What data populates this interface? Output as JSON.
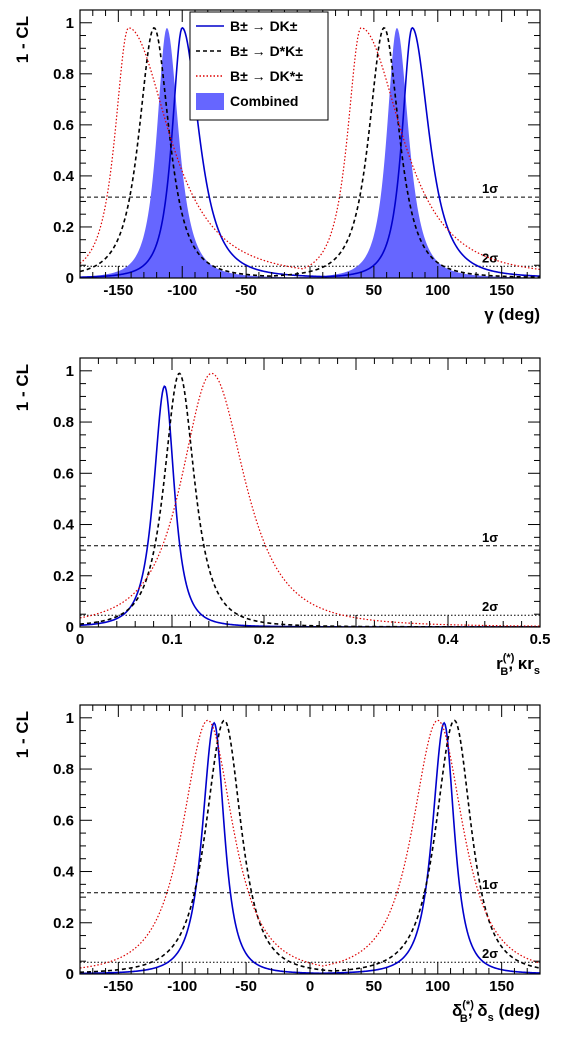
{
  "chart_data": [
    {
      "type": "line",
      "xlabel": "γ (deg)",
      "ylabel": "1 - CL",
      "xlim": [
        -180,
        180
      ],
      "ylim": [
        0,
        1.05
      ],
      "xticks": [
        -150,
        -100,
        -50,
        0,
        50,
        100,
        150
      ],
      "yticks": [
        0,
        0.2,
        0.4,
        0.6,
        0.8,
        1
      ],
      "xtick_labels": [
        "-150",
        "-100",
        "-50",
        "0",
        "50",
        "100",
        "150"
      ],
      "ytick_labels": [
        "0",
        "0.2",
        "0.4",
        "0.6",
        "0.8",
        "1"
      ],
      "reference_lines": [
        {
          "label": "1σ",
          "y": 0.317
        },
        {
          "label": "2σ",
          "y": 0.046
        }
      ],
      "legend": {
        "placement": "top-center"
      },
      "series": [
        {
          "name": "B± → DK±",
          "style": "solid",
          "color": "#0000cc",
          "peaks": [
            {
              "x": -100,
              "y": 0.98,
              "wl": 12,
              "wr": 20
            },
            {
              "x": 80,
              "y": 0.98,
              "wl": 12,
              "wr": 20
            }
          ]
        },
        {
          "name": "B± → D*K±",
          "style": "dashed",
          "color": "#000000",
          "peaks": [
            {
              "x": -122,
              "y": 0.98,
              "wl": 18,
              "wr": 18
            },
            {
              "x": 58,
              "y": 0.98,
              "wl": 18,
              "wr": 18
            }
          ]
        },
        {
          "name": "B± → DK*±",
          "style": "dotted",
          "color": "#dd0000",
          "peaks": [
            {
              "x": -142,
              "y": 0.98,
              "wl": 16,
              "wr": 48
            },
            {
              "x": 40,
              "y": 0.98,
              "wl": 16,
              "wr": 48
            }
          ]
        },
        {
          "name": "Combined",
          "style": "filled",
          "color": "#6666ff",
          "peaks": [
            {
              "x": -112,
              "y": 0.98,
              "wl": 12,
              "wr": 14
            },
            {
              "x": 68,
              "y": 0.98,
              "wl": 12,
              "wr": 14
            }
          ]
        }
      ]
    },
    {
      "type": "line",
      "xlabel": "r_B^(*), κr_s",
      "ylabel": "1 - CL",
      "xlim": [
        0,
        0.5
      ],
      "ylim": [
        0,
        1.05
      ],
      "xticks": [
        0,
        0.1,
        0.2,
        0.3,
        0.4,
        0.5
      ],
      "yticks": [
        0,
        0.2,
        0.4,
        0.6,
        0.8,
        1
      ],
      "xtick_labels": [
        "0",
        "0.1",
        "0.2",
        "0.3",
        "0.4",
        "0.5"
      ],
      "ytick_labels": [
        "0",
        "0.2",
        "0.4",
        "0.6",
        "0.8",
        "1"
      ],
      "reference_lines": [
        {
          "label": "1σ",
          "y": 0.317
        },
        {
          "label": "2σ",
          "y": 0.046
        }
      ],
      "series": [
        {
          "style": "solid",
          "color": "#0000cc",
          "peaks": [
            {
              "x": 0.092,
              "y": 0.94,
              "wl": 0.018,
              "wr": 0.016
            }
          ]
        },
        {
          "style": "dashed",
          "color": "#000000",
          "peaks": [
            {
              "x": 0.108,
              "y": 0.99,
              "wl": 0.025,
              "wr": 0.025
            }
          ]
        },
        {
          "style": "dotted",
          "color": "#dd0000",
          "peaks": [
            {
              "x": 0.143,
              "y": 0.99,
              "wl": 0.05,
              "wr": 0.055
            }
          ]
        }
      ]
    },
    {
      "type": "line",
      "xlabel": "δ_B^(*), δ_s (deg)",
      "ylabel": "1 - CL",
      "xlim": [
        -180,
        180
      ],
      "ylim": [
        0,
        1.05
      ],
      "xticks": [
        -150,
        -100,
        -50,
        0,
        50,
        100,
        150
      ],
      "yticks": [
        0,
        0.2,
        0.4,
        0.6,
        0.8,
        1
      ],
      "xtick_labels": [
        "-150",
        "-100",
        "-50",
        "0",
        "50",
        "100",
        "150"
      ],
      "ytick_labels": [
        "0",
        "0.2",
        "0.4",
        "0.6",
        "0.8",
        "1"
      ],
      "reference_lines": [
        {
          "label": "1σ",
          "y": 0.317
        },
        {
          "label": "2σ",
          "y": 0.046
        }
      ],
      "series": [
        {
          "style": "solid",
          "color": "#0000cc",
          "peaks": [
            {
              "x": -75,
              "y": 0.98,
              "wl": 14,
              "wr": 12
            },
            {
              "x": 105,
              "y": 0.98,
              "wl": 14,
              "wr": 12
            }
          ]
        },
        {
          "style": "dashed",
          "color": "#000000",
          "peaks": [
            {
              "x": -67,
              "y": 0.99,
              "wl": 22,
              "wr": 20
            },
            {
              "x": 113,
              "y": 0.99,
              "wl": 22,
              "wr": 20
            }
          ]
        },
        {
          "style": "dotted",
          "color": "#dd0000",
          "peaks": [
            {
              "x": -80,
              "y": 0.99,
              "wl": 30,
              "wr": 30
            },
            {
              "x": 100,
              "y": 0.99,
              "wl": 30,
              "wr": 30
            }
          ]
        }
      ]
    }
  ]
}
